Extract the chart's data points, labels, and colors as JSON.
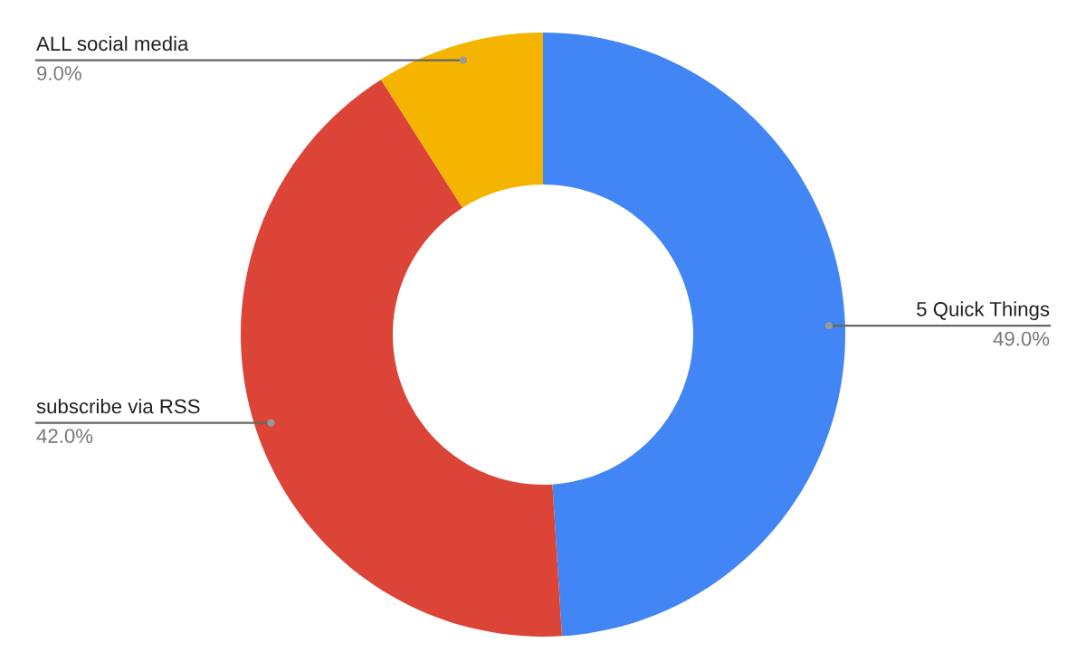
{
  "chart_data": {
    "type": "donut",
    "categories": [
      "5 Quick Things",
      "subscribe via RSS",
      "ALL social media"
    ],
    "values": [
      49.0,
      42.0,
      9.0
    ],
    "colors": [
      "#4285f4",
      "#db4437",
      "#f4b400"
    ],
    "value_labels": [
      "49.0%",
      "42.0%",
      "9.0%"
    ],
    "legend": false
  }
}
